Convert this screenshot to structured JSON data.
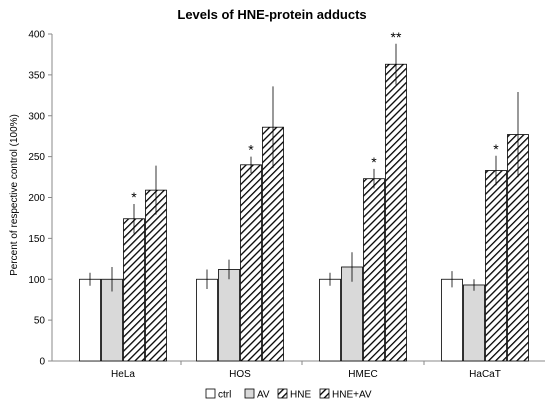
{
  "chart_data": {
    "type": "bar",
    "title": "Levels of HNE-protein adducts",
    "xlabel": "",
    "ylabel": "Percent of respective control (100%)",
    "ylim": [
      0,
      400
    ],
    "yticks": [
      0,
      50,
      100,
      150,
      200,
      250,
      300,
      350,
      400
    ],
    "grid": false,
    "legend": "bottom",
    "categories": [
      "HeLa",
      "HOS",
      "HMEC",
      "HaCaT"
    ],
    "series": [
      {
        "name": "ctrl",
        "pattern": "white",
        "values": [
          100,
          100,
          100,
          100
        ],
        "errors": [
          8,
          12,
          8,
          10
        ],
        "annotations": [
          "",
          "",
          "",
          ""
        ]
      },
      {
        "name": "AV",
        "pattern": "gray",
        "values": [
          100,
          112,
          115,
          93
        ],
        "errors": [
          15,
          12,
          18,
          7
        ],
        "annotations": [
          "",
          "",
          "",
          ""
        ]
      },
      {
        "name": "HNE",
        "pattern": "hatch",
        "values": [
          174,
          240,
          223,
          233
        ],
        "errors": [
          18,
          10,
          12,
          18
        ],
        "annotations": [
          "*",
          "*",
          "*",
          "*"
        ]
      },
      {
        "name": "HNE+AV",
        "pattern": "hatch",
        "values": [
          209,
          286,
          363,
          277
        ],
        "errors": [
          30,
          50,
          25,
          52
        ],
        "annotations": [
          "",
          "",
          "**",
          ""
        ]
      }
    ],
    "colors": {
      "bar_stroke": "#000000",
      "gray_fill": "#d9d9d9",
      "white_fill": "#ffffff",
      "hatch": "#000000",
      "axis": "#888888"
    }
  }
}
